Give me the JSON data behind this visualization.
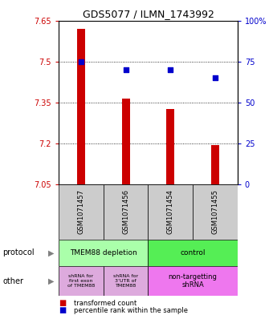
{
  "title": "GDS5077 / ILMN_1743992",
  "samples": [
    "GSM1071457",
    "GSM1071456",
    "GSM1071454",
    "GSM1071455"
  ],
  "bar_values": [
    7.62,
    7.365,
    7.327,
    7.195
  ],
  "bar_bottom": 7.05,
  "percentile_values": [
    75,
    70,
    70,
    65
  ],
  "ylim": [
    7.05,
    7.65
  ],
  "yticks": [
    7.05,
    7.2,
    7.35,
    7.5,
    7.65
  ],
  "ytick_labels": [
    "7.05",
    "7.2",
    "7.35",
    "7.5",
    "7.65"
  ],
  "right_yticks": [
    0,
    25,
    50,
    75,
    100
  ],
  "right_ytick_labels": [
    "0",
    "25",
    "50",
    "75",
    "100%"
  ],
  "bar_color": "#cc0000",
  "dot_color": "#0000cc",
  "left_tick_color": "#cc0000",
  "right_tick_color": "#0000cc",
  "sample_bg_color": "#cccccc",
  "depletion_color": "#aaffaa",
  "control_color": "#55ee55",
  "other1_color": "#ddaadd",
  "other2_color": "#ee77ee",
  "legend_red_label": "transformed count",
  "legend_blue_label": "percentile rank within the sample",
  "protocol_label": "protocol",
  "other_label": "other",
  "protocol_row1_labels": [
    "TMEM88 depletion",
    "control"
  ],
  "protocol_row2_label1": "shRNA for\nfirst exon\nof TMEM88",
  "protocol_row2_label2": "shRNA for\n3’UTR of\nTMEM88",
  "protocol_row2_label3": "non-targetting\nshRNA"
}
